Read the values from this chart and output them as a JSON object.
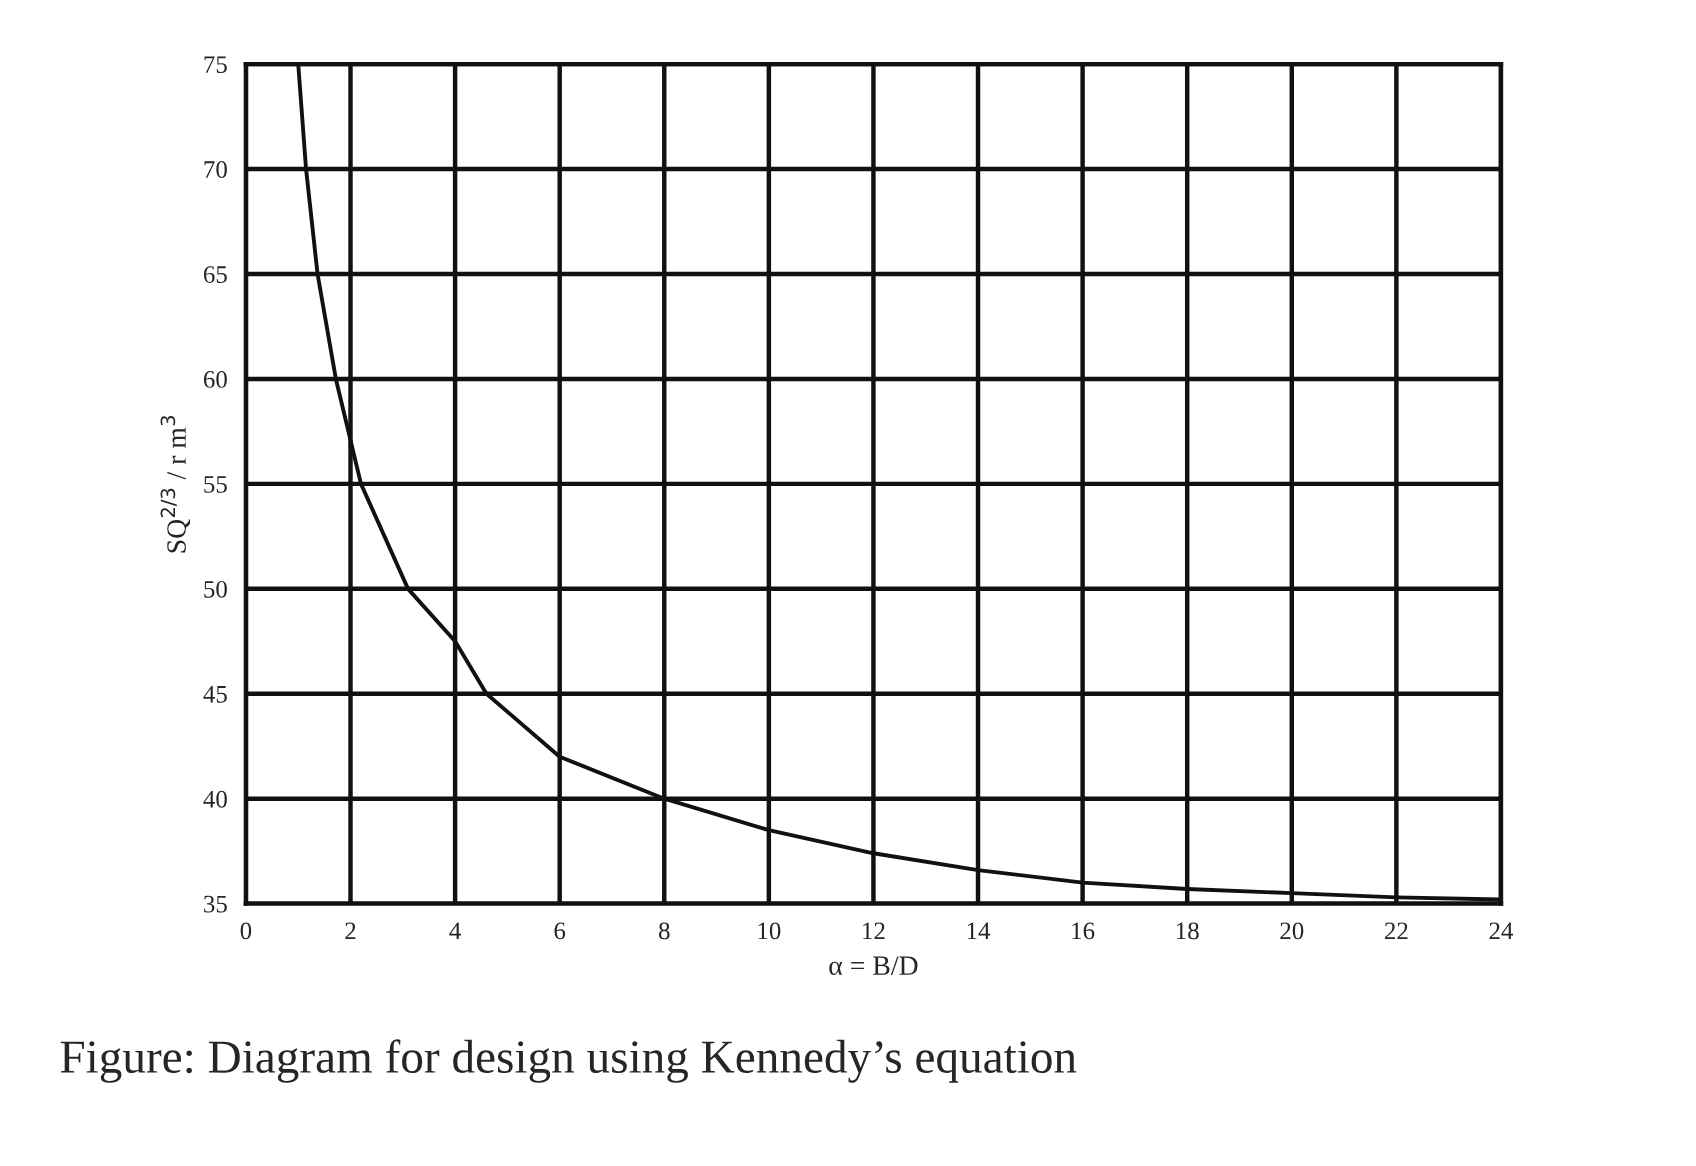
{
  "chart_data": {
    "type": "line",
    "xlabel": "α = B/D",
    "ylabel": "SQ$^{2/3}$ / r m$^{3}$",
    "annotations": [
      "Figure: Diagram for design using Kennedy’s equation"
    ],
    "series": [
      {
        "color": "#111111",
        "x": [
          1.0,
          1.15,
          1.37,
          1.72,
          2.2,
          3.1,
          4.0,
          4.6,
          6.0,
          8.0,
          10.0,
          12.0,
          14.0,
          16.0,
          18.0,
          20.0,
          22.0,
          24.0
        ],
        "values": [
          75,
          70,
          65,
          60,
          55,
          50,
          47.5,
          45,
          42,
          40,
          38.5,
          37.4,
          36.6,
          36.0,
          35.7,
          35.5,
          35.3,
          35.2
        ]
      }
    ],
    "xlim": [
      0,
      24
    ],
    "xticks": [
      0,
      2,
      4,
      6,
      8,
      10,
      12,
      14,
      16,
      18,
      20,
      22,
      24
    ],
    "ylim": [
      35,
      75
    ],
    "yticks": [
      35,
      40,
      45,
      50,
      55,
      60,
      65,
      70,
      75
    ],
    "grid": true,
    "marker": "none",
    "line_style": "solid"
  }
}
